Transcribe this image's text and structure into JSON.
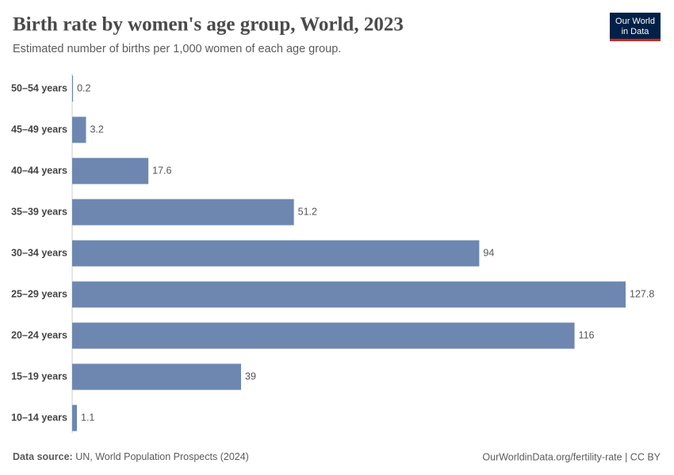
{
  "chart_data": {
    "type": "bar",
    "orientation": "horizontal",
    "title": "Birth rate by women's age group, World, 2023",
    "subtitle": "Estimated number of births per 1,000 women of each age group.",
    "categories": [
      "50–54 years",
      "45–49 years",
      "40–44 years",
      "35–39 years",
      "30–34 years",
      "25–29 years",
      "20–24 years",
      "15–19 years",
      "10–14 years"
    ],
    "values": [
      0.2,
      3.2,
      17.6,
      51.2,
      94,
      127.8,
      116,
      39,
      1.1
    ],
    "color": "#6d87b0",
    "source_label": "Data source:",
    "source": "UN, World Population Prospects (2024)",
    "url": "OurWorldinData.org/fertility-rate | CC BY",
    "logo": [
      "Our World",
      "in Data"
    ]
  }
}
